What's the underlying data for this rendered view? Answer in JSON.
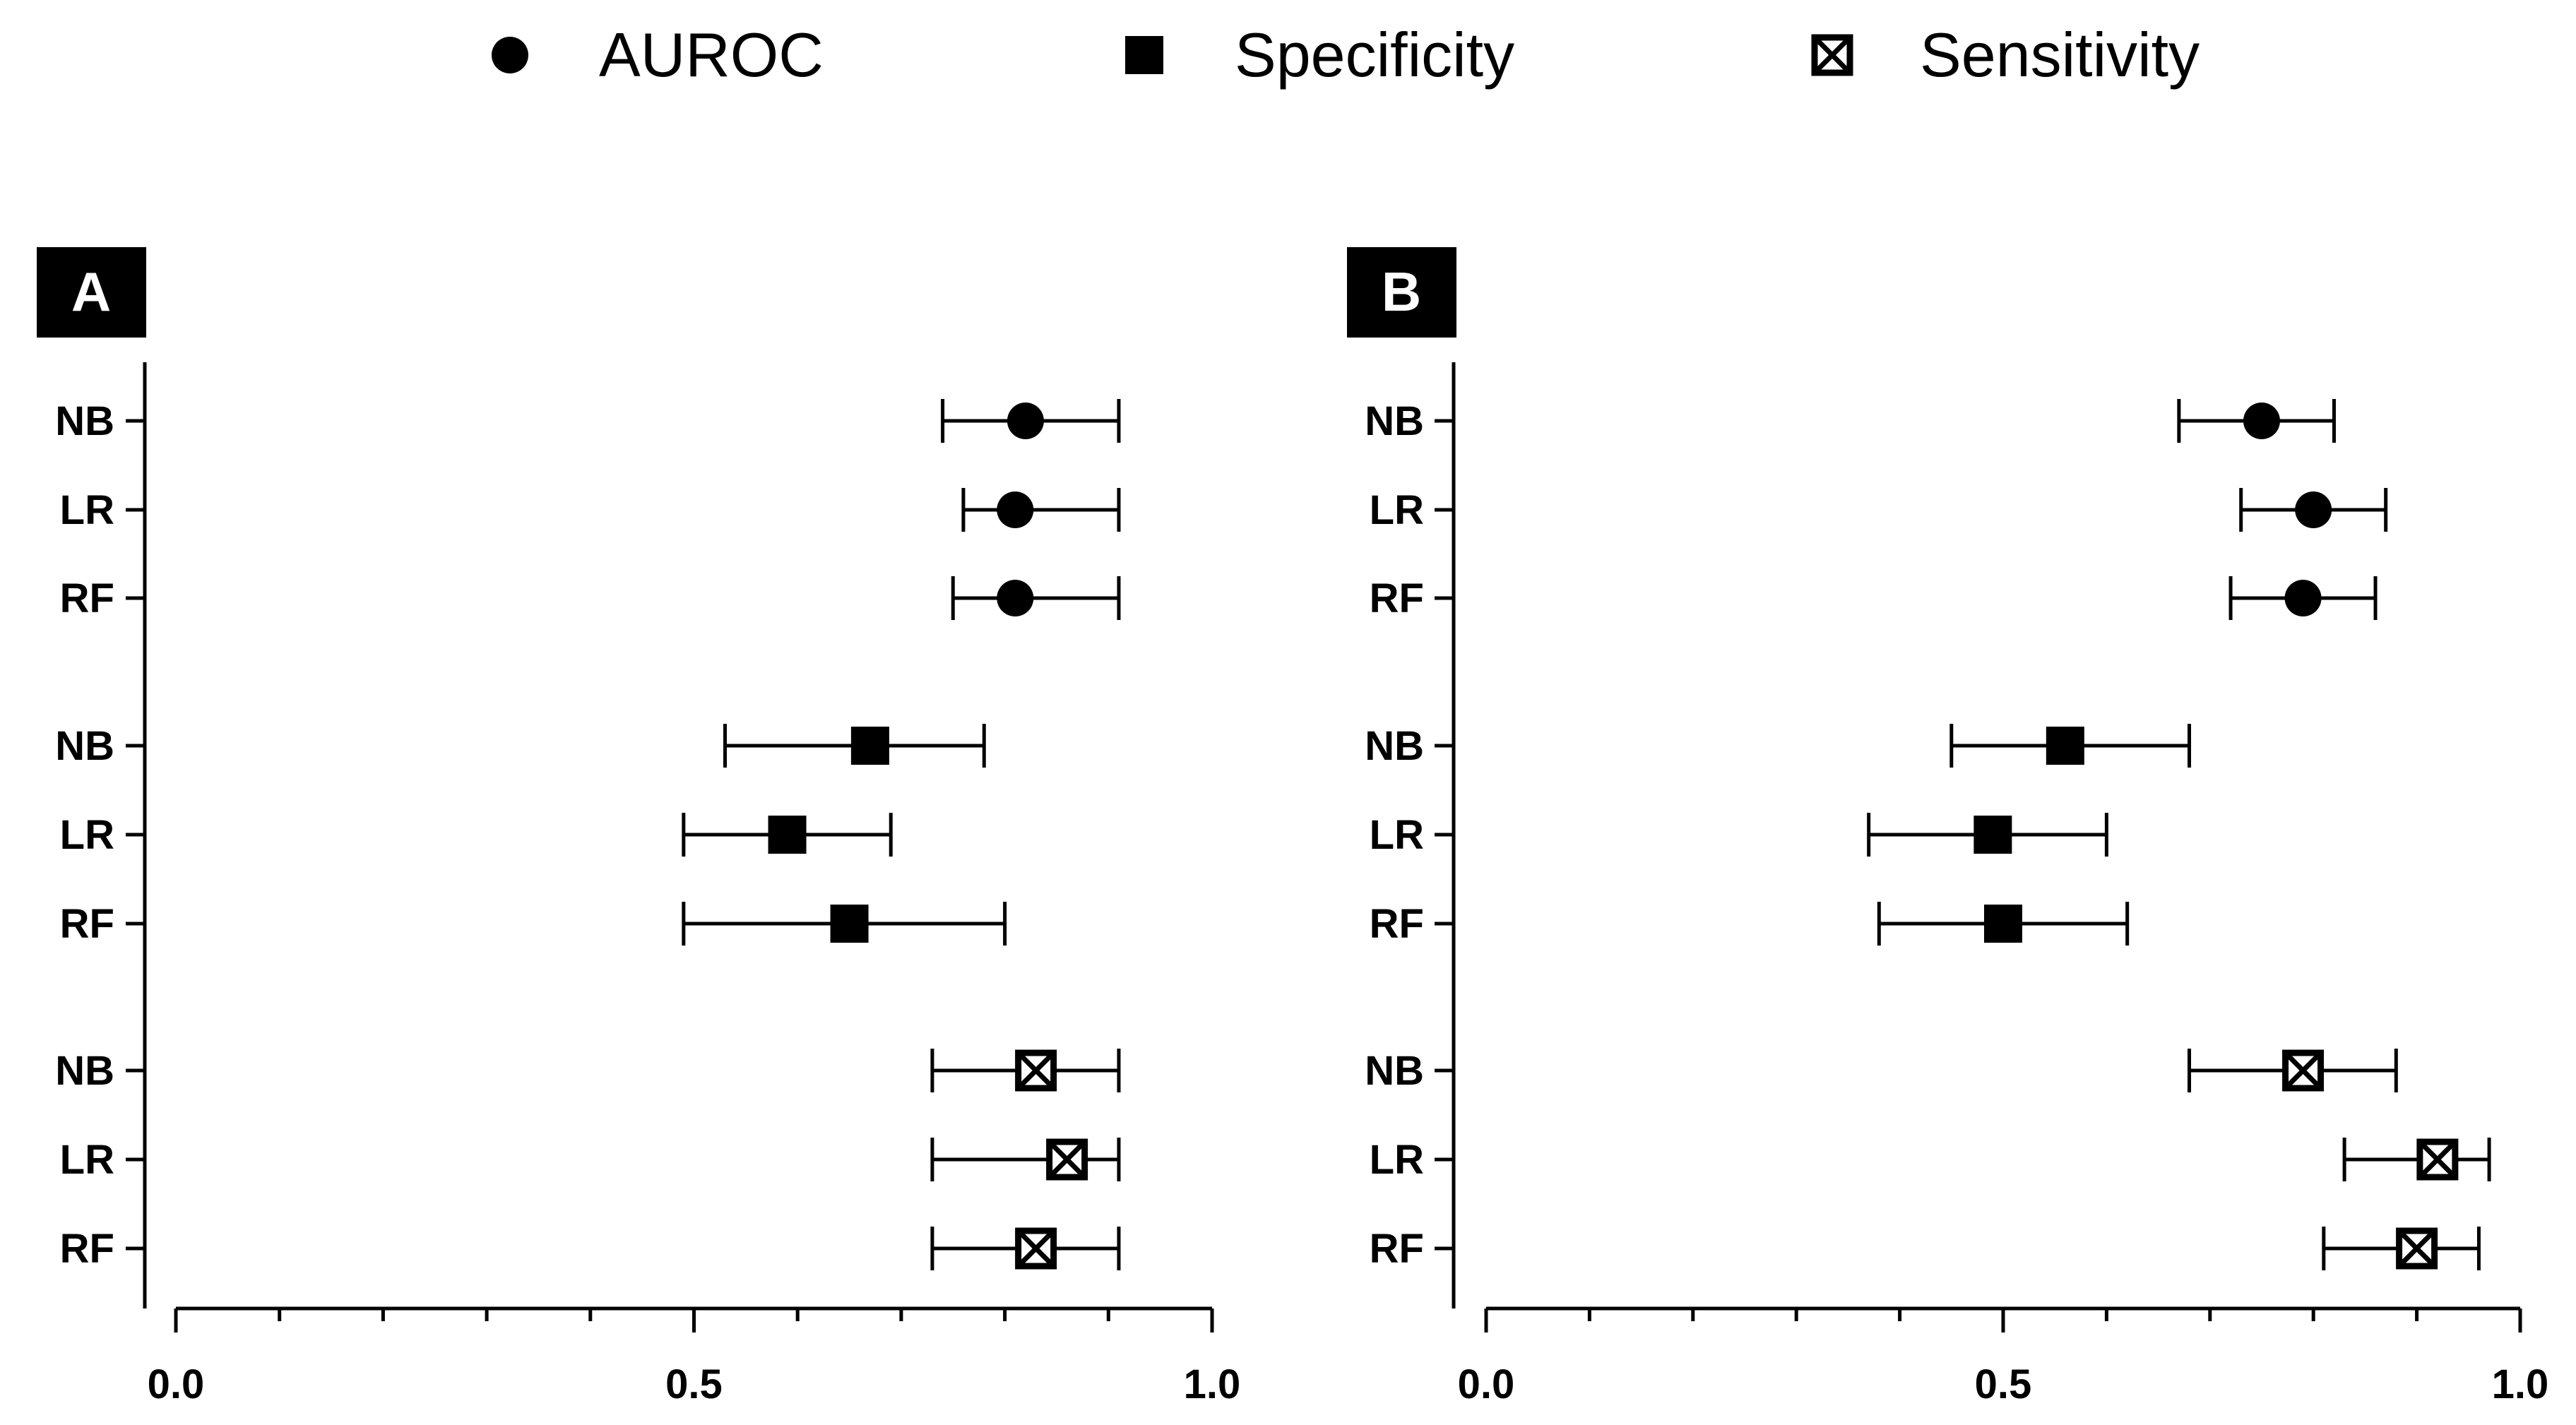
{
  "legend": [
    {
      "label": "AUROC",
      "marker": "circle"
    },
    {
      "label": "Specificity",
      "marker": "square"
    },
    {
      "label": "Sensitivity",
      "marker": "boxed-x"
    }
  ],
  "chart_data": [
    {
      "type": "forest",
      "panel": "A",
      "xlim": [
        0.0,
        1.0
      ],
      "xticks": [
        "0.0",
        "0.5",
        "1.0"
      ],
      "groups": [
        {
          "metric": "AUROC",
          "marker": "circle",
          "rows": [
            {
              "label": "NB",
              "value": 0.82,
              "lower": 0.74,
              "upper": 0.91
            },
            {
              "label": "LR",
              "value": 0.81,
              "lower": 0.76,
              "upper": 0.91
            },
            {
              "label": "RF",
              "value": 0.81,
              "lower": 0.75,
              "upper": 0.91
            }
          ]
        },
        {
          "metric": "Specificity",
          "marker": "square",
          "rows": [
            {
              "label": "NB",
              "value": 0.67,
              "lower": 0.53,
              "upper": 0.78
            },
            {
              "label": "LR",
              "value": 0.59,
              "lower": 0.49,
              "upper": 0.69
            },
            {
              "label": "RF",
              "value": 0.65,
              "lower": 0.49,
              "upper": 0.8
            }
          ]
        },
        {
          "metric": "Sensitivity",
          "marker": "boxed-x",
          "rows": [
            {
              "label": "NB",
              "value": 0.83,
              "lower": 0.73,
              "upper": 0.91
            },
            {
              "label": "LR",
              "value": 0.86,
              "lower": 0.73,
              "upper": 0.91
            },
            {
              "label": "RF",
              "value": 0.83,
              "lower": 0.73,
              "upper": 0.91
            }
          ]
        }
      ]
    },
    {
      "type": "forest",
      "panel": "B",
      "xlim": [
        0.0,
        1.0
      ],
      "xticks": [
        "0.0",
        "0.5",
        "1.0"
      ],
      "groups": [
        {
          "metric": "AUROC",
          "marker": "circle",
          "rows": [
            {
              "label": "NB",
              "value": 0.75,
              "lower": 0.67,
              "upper": 0.82
            },
            {
              "label": "LR",
              "value": 0.8,
              "lower": 0.73,
              "upper": 0.87
            },
            {
              "label": "RF",
              "value": 0.79,
              "lower": 0.72,
              "upper": 0.86
            }
          ]
        },
        {
          "metric": "Specificity",
          "marker": "square",
          "rows": [
            {
              "label": "NB",
              "value": 0.56,
              "lower": 0.45,
              "upper": 0.68
            },
            {
              "label": "LR",
              "value": 0.49,
              "lower": 0.37,
              "upper": 0.6
            },
            {
              "label": "RF",
              "value": 0.5,
              "lower": 0.38,
              "upper": 0.62
            }
          ]
        },
        {
          "metric": "Sensitivity",
          "marker": "boxed-x",
          "rows": [
            {
              "label": "NB",
              "value": 0.79,
              "lower": 0.68,
              "upper": 0.88
            },
            {
              "label": "LR",
              "value": 0.92,
              "lower": 0.83,
              "upper": 0.97
            },
            {
              "label": "RF",
              "value": 0.9,
              "lower": 0.81,
              "upper": 0.96
            }
          ]
        }
      ]
    }
  ]
}
